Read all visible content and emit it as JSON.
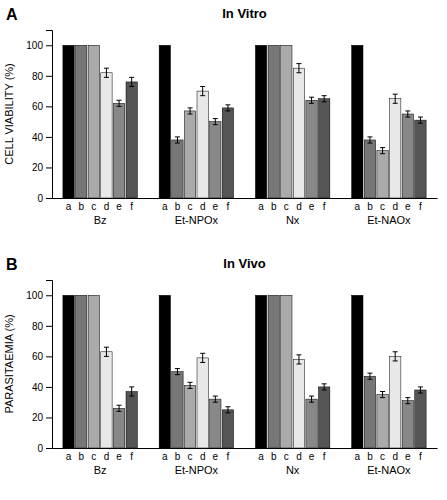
{
  "chart_data": [
    {
      "type": "bar",
      "title": "In Vitro",
      "y_label": "CELL VIABILITY (%)",
      "annotations": [
        "A"
      ],
      "categories": [
        "Bz",
        "Et-NPOx",
        "Nx",
        "Et-NAOx"
      ],
      "series": [
        {
          "name": "a",
          "color": "#000000",
          "values": [
            100,
            100,
            100,
            100
          ],
          "errors": [
            0,
            0,
            0,
            0
          ]
        },
        {
          "name": "b",
          "color": "#777777",
          "values": [
            100,
            38,
            100,
            38
          ],
          "errors": [
            0,
            2,
            0,
            2
          ]
        },
        {
          "name": "c",
          "color": "#aaaaaa",
          "values": [
            100,
            57,
            100,
            31
          ],
          "errors": [
            0,
            2,
            0,
            2
          ]
        },
        {
          "name": "d",
          "color": "#e8e8e8",
          "values": [
            82,
            70,
            85,
            65
          ],
          "errors": [
            3,
            3,
            3,
            3
          ]
        },
        {
          "name": "e",
          "color": "#888888",
          "values": [
            62,
            50,
            64,
            55
          ],
          "errors": [
            2,
            2,
            2,
            2
          ]
        },
        {
          "name": "f",
          "color": "#555555",
          "values": [
            76,
            59,
            65,
            51
          ],
          "errors": [
            3,
            2,
            2,
            2
          ]
        }
      ],
      "ylim": [
        0,
        110
      ],
      "yticks": [
        0,
        20,
        40,
        60,
        80,
        100
      ]
    },
    {
      "type": "bar",
      "title": "In Vivo",
      "y_label": "PARASITAEMIA (%)",
      "annotations": [
        "B"
      ],
      "categories": [
        "Bz",
        "Et-NPOx",
        "Nx",
        "Et-NAOx"
      ],
      "series": [
        {
          "name": "a",
          "color": "#000000",
          "values": [
            100,
            100,
            100,
            100
          ],
          "errors": [
            0,
            0,
            0,
            0
          ]
        },
        {
          "name": "b",
          "color": "#777777",
          "values": [
            100,
            50,
            100,
            47
          ],
          "errors": [
            0,
            2,
            0,
            2
          ]
        },
        {
          "name": "c",
          "color": "#aaaaaa",
          "values": [
            100,
            41,
            100,
            35
          ],
          "errors": [
            0,
            2,
            0,
            2
          ]
        },
        {
          "name": "d",
          "color": "#e8e8e8",
          "values": [
            63,
            59,
            58,
            60
          ],
          "errors": [
            3,
            3,
            3,
            3
          ]
        },
        {
          "name": "e",
          "color": "#888888",
          "values": [
            26,
            32,
            32,
            31
          ],
          "errors": [
            2,
            2,
            2,
            2
          ]
        },
        {
          "name": "f",
          "color": "#555555",
          "values": [
            37,
            25,
            40,
            38
          ],
          "errors": [
            3,
            2,
            2,
            2
          ]
        }
      ],
      "ylim": [
        0,
        110
      ],
      "yticks": [
        0,
        20,
        40,
        60,
        80,
        100
      ]
    }
  ]
}
